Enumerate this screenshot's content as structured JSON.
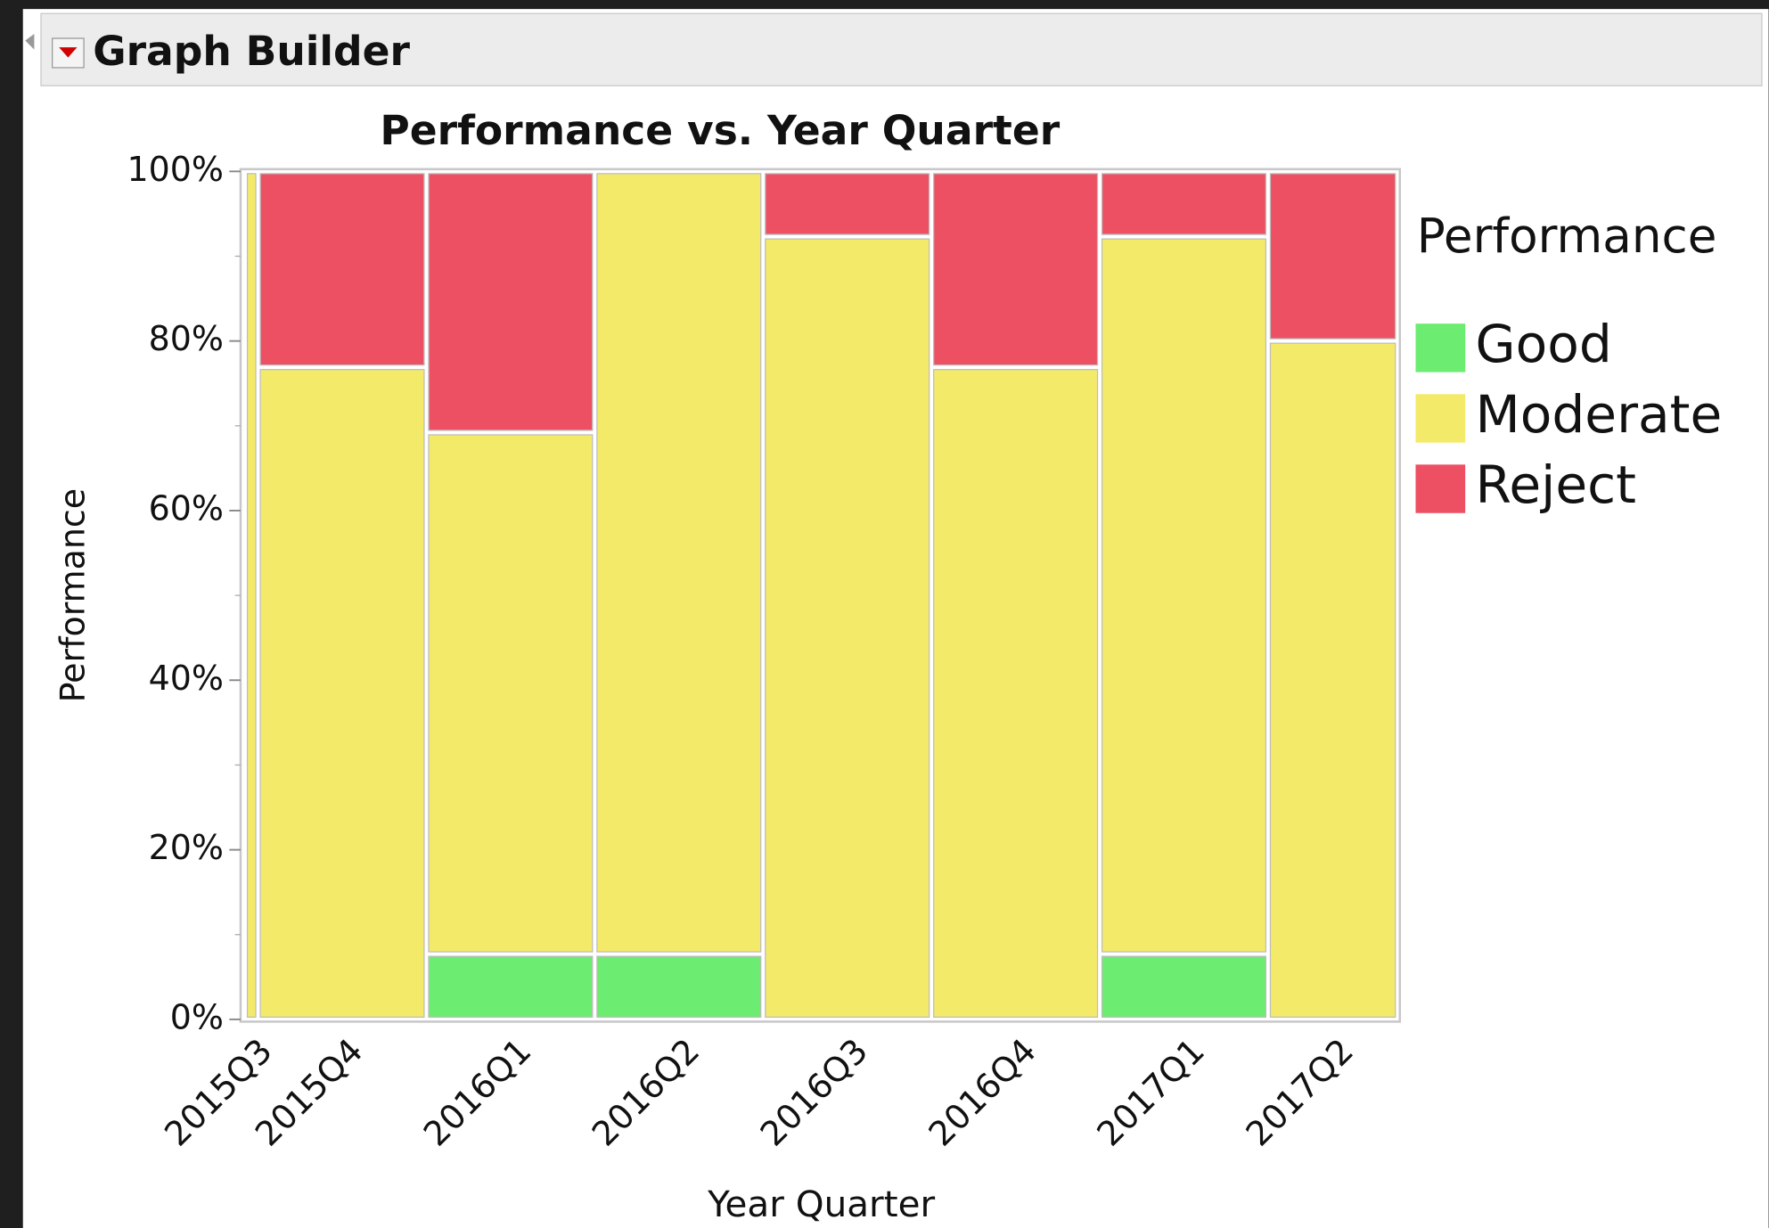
{
  "window": {
    "title": "Graph Builder"
  },
  "chart_data": {
    "type": "mosaic",
    "title": "Performance vs. Year Quarter",
    "x_label": "Year Quarter",
    "y_label": "Performance",
    "legend_title": "Performance",
    "categories": [
      "2015Q3",
      "2015Q4",
      "2016Q1",
      "2016Q2",
      "2016Q3",
      "2016Q4",
      "2017Q1",
      "2017Q2"
    ],
    "counts": [
      1,
      13,
      13,
      13,
      13,
      13,
      13,
      10
    ],
    "series": [
      {
        "name": "Good",
        "color": "#6cec70",
        "values": [
          0,
          0,
          7.7,
          7.7,
          0,
          0,
          7.7,
          0
        ]
      },
      {
        "name": "Moderate",
        "color": "#f4ea6a",
        "values": [
          100,
          76.9,
          61.5,
          92.3,
          92.3,
          76.9,
          84.6,
          80
        ]
      },
      {
        "name": "Reject",
        "color": "#ec5062",
        "values": [
          0,
          23.1,
          30.8,
          0,
          7.7,
          23.1,
          7.7,
          20
        ]
      }
    ],
    "ylim": [
      0,
      100
    ],
    "yticks": [
      {
        "value": 0,
        "label": "0%"
      },
      {
        "value": 20,
        "label": "20%"
      },
      {
        "value": 40,
        "label": "40%"
      },
      {
        "value": 60,
        "label": "60%"
      },
      {
        "value": 80,
        "label": "80%"
      },
      {
        "value": 100,
        "label": "100%"
      }
    ],
    "yminorticks": [
      10,
      30,
      50,
      70,
      90
    ]
  }
}
